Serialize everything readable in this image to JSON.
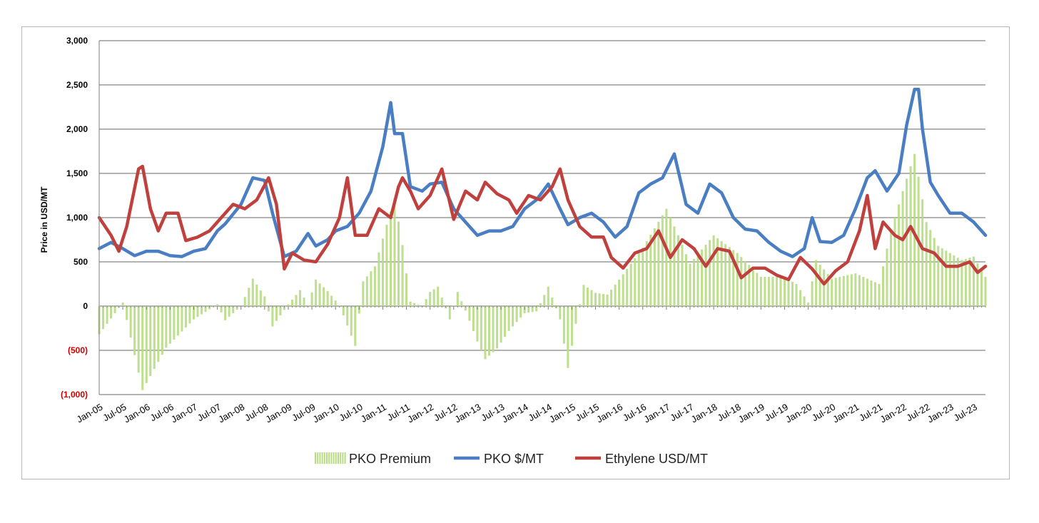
{
  "chart_data": {
    "type": "line",
    "title": "",
    "ylabel": "Price in USD/MT",
    "xlabel": "",
    "ylim": [
      -1000,
      3000
    ],
    "yticks": [
      {
        "value": 3000,
        "label": "3,000",
        "color": "#000000"
      },
      {
        "value": 2500,
        "label": "2,500",
        "color": "#000000"
      },
      {
        "value": 2000,
        "label": "2,000",
        "color": "#000000"
      },
      {
        "value": 1500,
        "label": "1,500",
        "color": "#000000"
      },
      {
        "value": 1000,
        "label": "1,000",
        "color": "#000000"
      },
      {
        "value": 500,
        "label": "500",
        "color": "#000000"
      },
      {
        "value": 0,
        "label": "0",
        "color": "#000000"
      },
      {
        "value": -500,
        "label": "(500)",
        "color": "#cc0000"
      },
      {
        "value": -1000,
        "label": "(1,000)",
        "color": "#cc0000"
      }
    ],
    "x_start": "Jan-05",
    "x_end": "Oct-23",
    "xticks": [
      "Jan-05",
      "Jul-05",
      "Jan-06",
      "Jul-06",
      "Jan-07",
      "Jul-07",
      "Jan-08",
      "Jul-08",
      "Jan-09",
      "Jul-09",
      "Jan-10",
      "Jul-10",
      "Jan-11",
      "Jul-11",
      "Jan-12",
      "Jul-12",
      "Jan-13",
      "Jul-13",
      "Jan-14",
      "Jul-14",
      "Jan-15",
      "Jul-15",
      "Jan-16",
      "Jul-16",
      "Jan-17",
      "Jul-17",
      "Jan-18",
      "Jul-18",
      "Jan-19",
      "Jul-19",
      "Jan-20",
      "Jul-20",
      "Jan-21",
      "Jul-21",
      "Jan-22",
      "Jul-22",
      "Jan-23",
      "Jul-23"
    ],
    "grid": true,
    "legend_position": "bottom",
    "series": [
      {
        "name": "PKO Premium",
        "type": "bar",
        "color": "#b8db84",
        "points": [
          [
            "Jan-05",
            -320
          ],
          [
            "Jul-05",
            40
          ],
          [
            "Dec-05",
            -950
          ],
          [
            "Jun-06",
            -470
          ],
          [
            "Jan-07",
            -150
          ],
          [
            "Jul-07",
            20
          ],
          [
            "Sep-07",
            -160
          ],
          [
            "Jan-08",
            0
          ],
          [
            "Apr-08",
            310
          ],
          [
            "Jul-08",
            110
          ],
          [
            "Sep-08",
            -230
          ],
          [
            "Jan-09",
            20
          ],
          [
            "Apr-09",
            180
          ],
          [
            "Jun-09",
            10
          ],
          [
            "Aug-09",
            300
          ],
          [
            "Nov-09",
            170
          ],
          [
            "Feb-10",
            10
          ],
          [
            "Jun-10",
            -450
          ],
          [
            "Aug-10",
            280
          ],
          [
            "Nov-10",
            450
          ],
          [
            "Feb-11",
            920
          ],
          [
            "Apr-11",
            1220
          ],
          [
            "Jun-11",
            690
          ],
          [
            "Aug-11",
            50
          ],
          [
            "Nov-11",
            0
          ],
          [
            "Jan-12",
            160
          ],
          [
            "Mar-12",
            220
          ],
          [
            "Jun-12",
            -150
          ],
          [
            "Aug-12",
            160
          ],
          [
            "Oct-12",
            -50
          ],
          [
            "Jan-13",
            -400
          ],
          [
            "Mar-13",
            -600
          ],
          [
            "Jun-13",
            -480
          ],
          [
            "Sep-13",
            -280
          ],
          [
            "Jan-14",
            -80
          ],
          [
            "Apr-14",
            -60
          ],
          [
            "Jul-14",
            220
          ],
          [
            "Oct-14",
            -150
          ],
          [
            "Dec-14",
            -700
          ],
          [
            "Feb-15",
            -200
          ],
          [
            "Apr-15",
            240
          ],
          [
            "Jul-15",
            150
          ],
          [
            "Oct-15",
            130
          ],
          [
            "Jan-16",
            300
          ],
          [
            "Jul-16",
            660
          ],
          [
            "Jan-17",
            1100
          ],
          [
            "Apr-17",
            800
          ],
          [
            "Jul-17",
            480
          ],
          [
            "Jan-18",
            800
          ],
          [
            "Jul-18",
            600
          ],
          [
            "Jan-19",
            330
          ],
          [
            "Jul-19",
            330
          ],
          [
            "Oct-19",
            250
          ],
          [
            "Jan-20",
            40
          ],
          [
            "Mar-20",
            520
          ],
          [
            "Jul-20",
            310
          ],
          [
            "Jan-21",
            370
          ],
          [
            "Jul-21",
            250
          ],
          [
            "Oct-21",
            850
          ],
          [
            "Jan-22",
            1300
          ],
          [
            "Apr-22",
            1720
          ],
          [
            "Jul-22",
            950
          ],
          [
            "Oct-22",
            680
          ],
          [
            "Jan-23",
            600
          ],
          [
            "Apr-23",
            520
          ],
          [
            "Jul-23",
            560
          ],
          [
            "Oct-23",
            330
          ]
        ]
      },
      {
        "name": "PKO $/MT",
        "type": "line",
        "color": "#4a7ec2",
        "points": [
          [
            "Jan-05",
            650
          ],
          [
            "Apr-05",
            720
          ],
          [
            "Jul-05",
            650
          ],
          [
            "Oct-05",
            570
          ],
          [
            "Jan-06",
            620
          ],
          [
            "Apr-06",
            620
          ],
          [
            "Jul-06",
            570
          ],
          [
            "Oct-06",
            560
          ],
          [
            "Jan-07",
            620
          ],
          [
            "Apr-07",
            650
          ],
          [
            "Jul-07",
            850
          ],
          [
            "Sep-07",
            930
          ],
          [
            "Jan-08",
            1150
          ],
          [
            "Apr-08",
            1450
          ],
          [
            "Jul-08",
            1420
          ],
          [
            "Sep-08",
            1050
          ],
          [
            "Dec-08",
            560
          ],
          [
            "Mar-09",
            620
          ],
          [
            "Jun-09",
            820
          ],
          [
            "Aug-09",
            680
          ],
          [
            "Nov-09",
            750
          ],
          [
            "Jan-10",
            850
          ],
          [
            "Apr-10",
            900
          ],
          [
            "Jul-10",
            1050
          ],
          [
            "Oct-10",
            1300
          ],
          [
            "Jan-11",
            1800
          ],
          [
            "Mar-11",
            2300
          ],
          [
            "Apr-11",
            1950
          ],
          [
            "Jun-11",
            1950
          ],
          [
            "Aug-11",
            1350
          ],
          [
            "Nov-11",
            1300
          ],
          [
            "Jan-12",
            1380
          ],
          [
            "Apr-12",
            1400
          ],
          [
            "Jul-12",
            1100
          ],
          [
            "Oct-12",
            950
          ],
          [
            "Jan-13",
            800
          ],
          [
            "Apr-13",
            850
          ],
          [
            "Jul-13",
            850
          ],
          [
            "Oct-13",
            900
          ],
          [
            "Jan-14",
            1100
          ],
          [
            "Apr-14",
            1200
          ],
          [
            "Jul-14",
            1380
          ],
          [
            "Oct-14",
            1100
          ],
          [
            "Dec-14",
            920
          ],
          [
            "Mar-15",
            1000
          ],
          [
            "Jun-15",
            1050
          ],
          [
            "Sep-15",
            950
          ],
          [
            "Dec-15",
            780
          ],
          [
            "Mar-16",
            900
          ],
          [
            "Jun-16",
            1280
          ],
          [
            "Sep-16",
            1380
          ],
          [
            "Dec-16",
            1450
          ],
          [
            "Mar-17",
            1720
          ],
          [
            "Jun-17",
            1150
          ],
          [
            "Sep-17",
            1050
          ],
          [
            "Dec-17",
            1380
          ],
          [
            "Mar-18",
            1280
          ],
          [
            "Jun-18",
            1000
          ],
          [
            "Sep-18",
            870
          ],
          [
            "Dec-18",
            850
          ],
          [
            "Mar-19",
            720
          ],
          [
            "Jun-19",
            620
          ],
          [
            "Sep-19",
            560
          ],
          [
            "Dec-19",
            650
          ],
          [
            "Feb-20",
            1000
          ],
          [
            "Apr-20",
            730
          ],
          [
            "Jul-20",
            720
          ],
          [
            "Oct-20",
            800
          ],
          [
            "Jan-21",
            1100
          ],
          [
            "Apr-21",
            1450
          ],
          [
            "Jun-21",
            1530
          ],
          [
            "Sep-21",
            1300
          ],
          [
            "Dec-21",
            1500
          ],
          [
            "Feb-22",
            2050
          ],
          [
            "Apr-22",
            2450
          ],
          [
            "May-22",
            2450
          ],
          [
            "Jun-22",
            2000
          ],
          [
            "Aug-22",
            1400
          ],
          [
            "Oct-22",
            1250
          ],
          [
            "Jan-23",
            1050
          ],
          [
            "Apr-23",
            1050
          ],
          [
            "Jul-23",
            950
          ],
          [
            "Oct-23",
            800
          ]
        ]
      },
      {
        "name": "Ethylene USD/MT",
        "type": "line",
        "color": "#c0403e",
        "points": [
          [
            "Jan-05",
            1000
          ],
          [
            "Apr-05",
            800
          ],
          [
            "Jun-05",
            620
          ],
          [
            "Aug-05",
            900
          ],
          [
            "Nov-05",
            1550
          ],
          [
            "Dec-05",
            1580
          ],
          [
            "Feb-06",
            1100
          ],
          [
            "Apr-06",
            850
          ],
          [
            "Jun-06",
            1050
          ],
          [
            "Sep-06",
            1050
          ],
          [
            "Nov-06",
            740
          ],
          [
            "Feb-07",
            780
          ],
          [
            "May-07",
            850
          ],
          [
            "Aug-07",
            1000
          ],
          [
            "Nov-07",
            1150
          ],
          [
            "Feb-08",
            1100
          ],
          [
            "May-08",
            1200
          ],
          [
            "Aug-08",
            1450
          ],
          [
            "Oct-08",
            1150
          ],
          [
            "Dec-08",
            420
          ],
          [
            "Feb-09",
            600
          ],
          [
            "May-09",
            520
          ],
          [
            "Aug-09",
            500
          ],
          [
            "Nov-09",
            700
          ],
          [
            "Feb-10",
            1000
          ],
          [
            "Apr-10",
            1450
          ],
          [
            "Jun-10",
            800
          ],
          [
            "Sep-10",
            800
          ],
          [
            "Dec-10",
            1100
          ],
          [
            "Mar-11",
            1000
          ],
          [
            "May-11",
            1350
          ],
          [
            "Jun-11",
            1450
          ],
          [
            "Aug-11",
            1300
          ],
          [
            "Oct-11",
            1100
          ],
          [
            "Jan-12",
            1250
          ],
          [
            "Apr-12",
            1550
          ],
          [
            "Jul-12",
            980
          ],
          [
            "Oct-12",
            1300
          ],
          [
            "Jan-13",
            1200
          ],
          [
            "Mar-13",
            1400
          ],
          [
            "Jun-13",
            1270
          ],
          [
            "Sep-13",
            1200
          ],
          [
            "Nov-13",
            1050
          ],
          [
            "Feb-14",
            1250
          ],
          [
            "May-14",
            1200
          ],
          [
            "Aug-14",
            1350
          ],
          [
            "Oct-14",
            1550
          ],
          [
            "Dec-14",
            1200
          ],
          [
            "Mar-15",
            900
          ],
          [
            "Jun-15",
            780
          ],
          [
            "Sep-15",
            780
          ],
          [
            "Nov-15",
            550
          ],
          [
            "Feb-16",
            430
          ],
          [
            "May-16",
            600
          ],
          [
            "Aug-16",
            650
          ],
          [
            "Nov-16",
            850
          ],
          [
            "Feb-17",
            550
          ],
          [
            "May-17",
            750
          ],
          [
            "Aug-17",
            650
          ],
          [
            "Nov-17",
            450
          ],
          [
            "Feb-18",
            650
          ],
          [
            "May-18",
            620
          ],
          [
            "Aug-18",
            320
          ],
          [
            "Nov-18",
            430
          ],
          [
            "Feb-19",
            430
          ],
          [
            "May-19",
            350
          ],
          [
            "Aug-19",
            300
          ],
          [
            "Nov-19",
            550
          ],
          [
            "Feb-20",
            420
          ],
          [
            "May-20",
            250
          ],
          [
            "Aug-20",
            400
          ],
          [
            "Nov-20",
            500
          ],
          [
            "Feb-21",
            850
          ],
          [
            "Apr-21",
            1250
          ],
          [
            "Jun-21",
            650
          ],
          [
            "Aug-21",
            950
          ],
          [
            "Nov-21",
            800
          ],
          [
            "Jan-22",
            750
          ],
          [
            "Mar-22",
            900
          ],
          [
            "Jun-22",
            650
          ],
          [
            "Sep-22",
            600
          ],
          [
            "Dec-22",
            450
          ],
          [
            "Mar-23",
            450
          ],
          [
            "Jun-23",
            500
          ],
          [
            "Aug-23",
            380
          ],
          [
            "Oct-23",
            450
          ]
        ]
      }
    ]
  }
}
